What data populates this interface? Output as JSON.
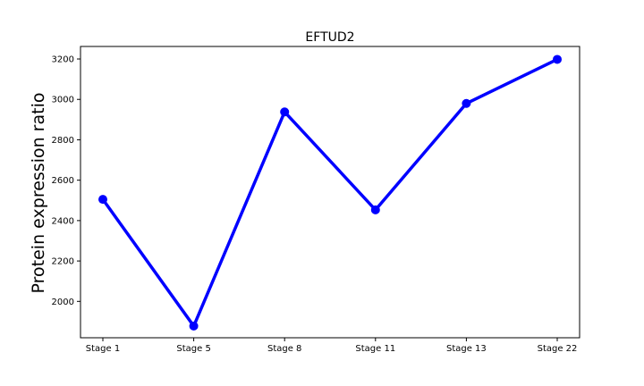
{
  "chart_data": {
    "type": "line",
    "title": "EFTUD2",
    "xlabel": "",
    "ylabel": "Protein expression ratio",
    "categories": [
      "Stage 1",
      "Stage 5",
      "Stage 8",
      "Stage 11",
      "Stage 13",
      "Stage 22"
    ],
    "series": [
      {
        "values": [
          2505,
          1878,
          2938,
          2453,
          2980,
          3198
        ]
      }
    ],
    "yticks": [
      2000,
      2200,
      2400,
      2600,
      2800,
      3000,
      3200
    ],
    "ylim": [
      1820,
      3262
    ],
    "grid": false,
    "legend": "none",
    "colors": {
      "series": "#0000ff",
      "axis": "#000000",
      "background": "#ffffff"
    }
  }
}
